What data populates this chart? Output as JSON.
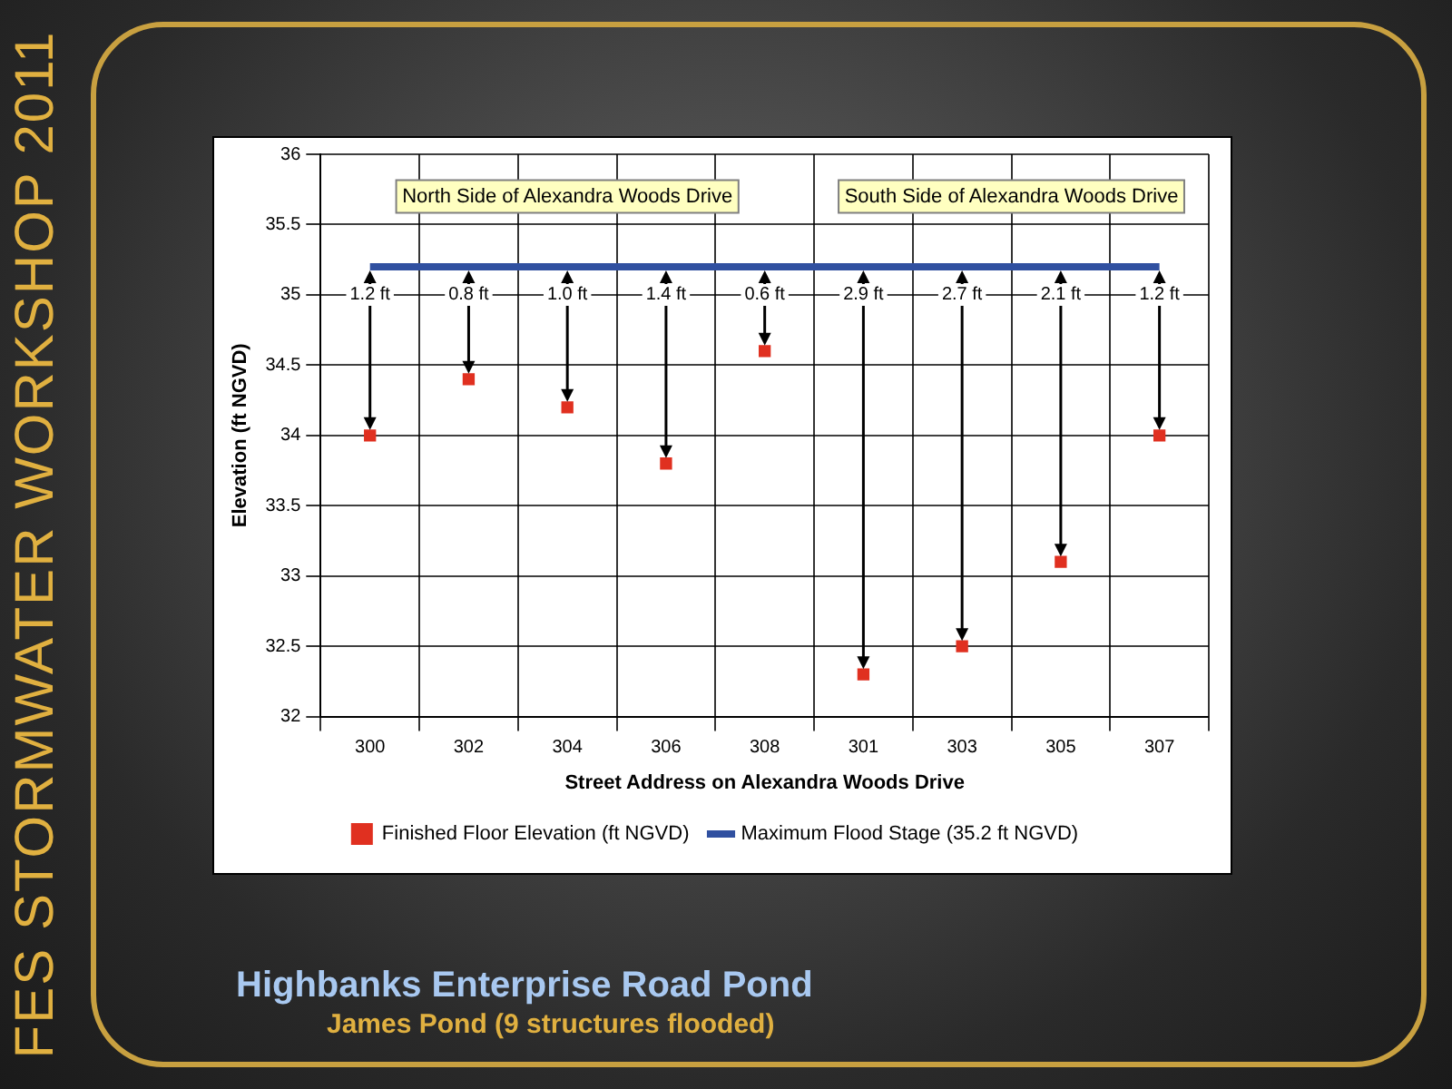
{
  "chart_data": {
    "type": "line",
    "title": "Highbanks Enterprise Road Pond",
    "subtitle": "James Pond (9 structures flooded)",
    "xlabel": "Street Address on Alexandra Woods Drive",
    "ylabel": "Elevation (ft NGVD)",
    "categories": [
      "300",
      "302",
      "304",
      "306",
      "308",
      "301",
      "303",
      "305",
      "307"
    ],
    "series": [
      {
        "name": "Finished Floor Elevation (ft NGVD)",
        "type": "scatter",
        "marker": "square",
        "color": "#e03020",
        "x": [
          "300",
          "302",
          "304",
          "306",
          "308",
          "301",
          "303",
          "305",
          "307"
        ],
        "values": [
          34.0,
          34.4,
          34.2,
          33.8,
          34.6,
          32.3,
          32.5,
          33.1,
          34.0
        ]
      },
      {
        "name": "Maximum Flood Stage (35.2 ft NGVD)",
        "type": "line",
        "color": "#3050a0",
        "values": [
          35.2,
          35.2,
          35.2,
          35.2,
          35.2,
          35.2,
          35.2,
          35.2,
          35.2
        ]
      }
    ],
    "ylim": [
      32,
      36
    ],
    "yticks": [
      32,
      32.5,
      33,
      33.5,
      34,
      34.5,
      35,
      35.5,
      36
    ],
    "grid": true,
    "legend": "bottom",
    "bands": [
      {
        "axis": "x",
        "from": "300",
        "to": "308",
        "label": "North Side of Alexandra Woods Drive"
      },
      {
        "axis": "x",
        "from": "301",
        "to": "307",
        "label": "South Side of Alexandra Woods Drive"
      }
    ],
    "annotations": [
      {
        "text": "1.2 ft",
        "x": "300",
        "y": 35.0
      },
      {
        "text": "0.8 ft",
        "x": "302",
        "y": 35.0
      },
      {
        "text": "1.0 ft",
        "x": "304",
        "y": 35.0
      },
      {
        "text": "1.4 ft",
        "x": "306",
        "y": 35.0
      },
      {
        "text": "0.6 ft",
        "x": "308",
        "y": 35.0
      },
      {
        "text": "2.9 ft",
        "x": "301",
        "y": 35.0
      },
      {
        "text": "2.7 ft",
        "x": "303",
        "y": 35.0
      },
      {
        "text": "2.1 ft",
        "x": "305",
        "y": 35.0
      },
      {
        "text": "1.2 ft",
        "x": "307",
        "y": 35.0
      },
      "FES STORMWATER WORKSHOP 2011"
    ]
  }
}
